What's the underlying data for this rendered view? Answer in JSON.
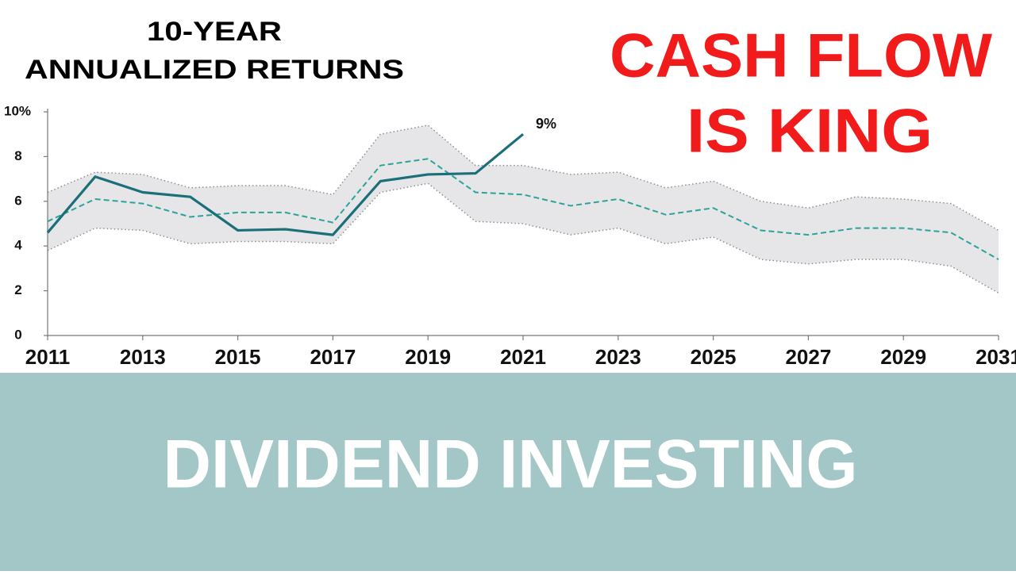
{
  "title": [
    "10-YEAR",
    "ANNUALIZED RETURNS"
  ],
  "headline": [
    "CASH FLOW",
    "IS KING"
  ],
  "banner": "DIVIDEND INVESTING",
  "chart_data": {
    "type": "line",
    "x": [
      2011,
      2012,
      2013,
      2014,
      2015,
      2016,
      2017,
      2018,
      2019,
      2020,
      2021,
      2022,
      2023,
      2024,
      2025,
      2026,
      2027,
      2028,
      2029,
      2030,
      2031
    ],
    "xlim": [
      2011,
      2031
    ],
    "xticks": [
      2011,
      2013,
      2015,
      2017,
      2019,
      2021,
      2023,
      2025,
      2027,
      2029,
      2031
    ],
    "ylim": [
      0,
      10
    ],
    "yticks": [
      0,
      2,
      4,
      6,
      8,
      {
        "value": 10,
        "label": "10%"
      }
    ],
    "band": {
      "color": "#e6e6e9",
      "upper": [
        6.4,
        7.3,
        7.2,
        6.6,
        6.7,
        6.7,
        6.3,
        9.0,
        9.4,
        7.6,
        7.6,
        7.2,
        7.3,
        6.6,
        6.9,
        6.0,
        5.7,
        6.2,
        6.1,
        5.9,
        4.7
      ],
      "lower": [
        3.8,
        4.8,
        4.7,
        4.1,
        4.2,
        4.2,
        4.1,
        6.4,
        6.8,
        5.1,
        5.0,
        4.5,
        4.8,
        4.1,
        4.4,
        3.4,
        3.2,
        3.4,
        3.4,
        3.1,
        1.9
      ]
    },
    "series": [
      {
        "color": "#1b6f78",
        "style": "solid",
        "values": [
          4.6,
          7.1,
          6.4,
          6.2,
          4.7,
          4.75,
          4.5,
          6.9,
          7.2,
          7.25,
          9.0,
          null,
          null,
          null,
          null,
          null,
          null,
          null,
          null,
          null,
          null
        ]
      },
      {
        "color": "#2ba39a",
        "style": "dashed",
        "values": [
          5.1,
          6.1,
          5.9,
          5.3,
          5.5,
          5.5,
          5.05,
          7.6,
          7.9,
          6.4,
          6.3,
          5.8,
          6.1,
          5.4,
          5.7,
          4.7,
          4.5,
          4.8,
          4.8,
          4.6,
          3.4
        ]
      }
    ],
    "annotations": [
      {
        "text": "9%",
        "x": 2021,
        "y": 9.0
      }
    ]
  }
}
